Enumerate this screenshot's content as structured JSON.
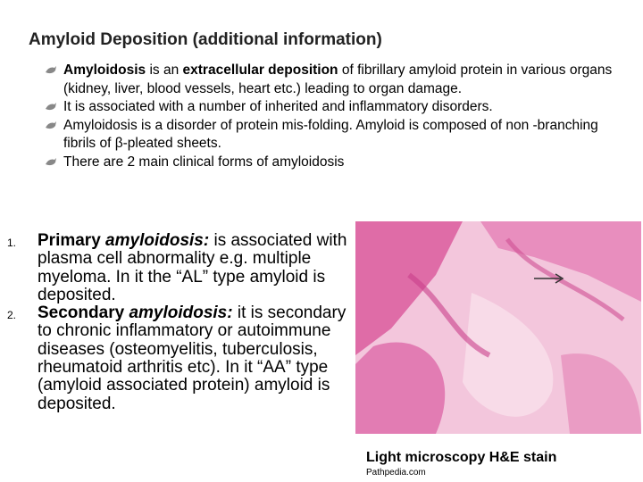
{
  "title": "Amyloid Deposition (additional information)",
  "bullets": [
    {
      "runs": [
        {
          "text": "Amyloidosis",
          "bold": true
        },
        {
          "text": " is an ",
          "bold": false
        },
        {
          "text": "extracellular deposition",
          "bold": true
        },
        {
          "text": " of fibrillary amyloid protein in various organs (kidney, liver, blood vessels, heart etc.) leading to organ damage.",
          "bold": false
        }
      ]
    },
    {
      "runs": [
        {
          "text": "It is associated with a number of inherited and inflammatory disorders.",
          "bold": false
        }
      ]
    },
    {
      "runs": [
        {
          "text": "Amyloidosis is a disorder of protein mis-folding. Amyloid is composed of non -branching fibrils of β-pleated sheets.",
          "bold": false
        }
      ]
    },
    {
      "runs": [
        {
          "text": "There are 2 main clinical forms of amyloidosis",
          "bold": false
        }
      ]
    }
  ],
  "numbered": [
    {
      "marker": "1.",
      "runs": [
        {
          "text": "Primary ",
          "bold": true,
          "italic": false
        },
        {
          "text": "amyloidosis:",
          "bold": true,
          "italic": true
        },
        {
          "text": " is associated with plasma cell abnormality e.g. multiple myeloma. In it the “AL” type amyloid is deposited.",
          "bold": false,
          "italic": false
        }
      ]
    },
    {
      "marker": "2.",
      "runs": [
        {
          "text": "Secondary ",
          "bold": true,
          "italic": false
        },
        {
          "text": "amyloidosis:",
          "bold": true,
          "italic": true
        },
        {
          "text": " it is secondary to chronic inflammatory or autoimmune diseases (osteomyelitis, tuberculosis, rheumatoid arthritis etc). In it “AA” type (amyloid associated protein) amyloid is deposited.",
          "bold": false,
          "italic": false
        }
      ]
    }
  ],
  "figure": {
    "caption": "Light microscopy H&E stain",
    "credit": "Pathpedia.com"
  }
}
